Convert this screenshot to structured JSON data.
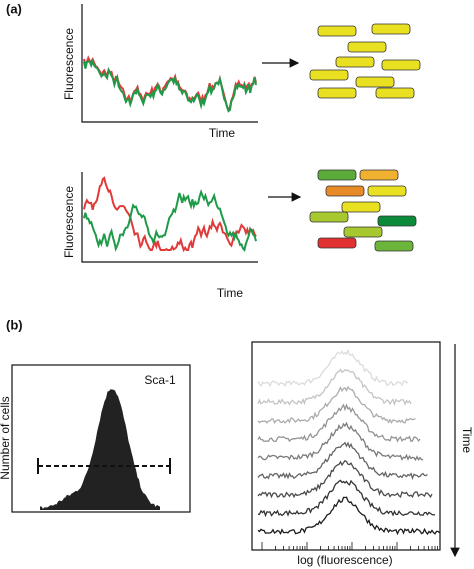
{
  "panel_a": {
    "label": "(a)",
    "top_plot": {
      "y_label": "Fluorescence",
      "x_label": "Time"
    },
    "bottom_plot": {
      "y_label": "Fluorescence",
      "x_label": "Time"
    }
  },
  "panel_b": {
    "label": "(b)",
    "histogram": {
      "y_label": "Number of cells",
      "marker": "Sca-1"
    },
    "time_series": {
      "x_label": "log (fluorescence)",
      "arrow_label": "Time"
    }
  }
}
